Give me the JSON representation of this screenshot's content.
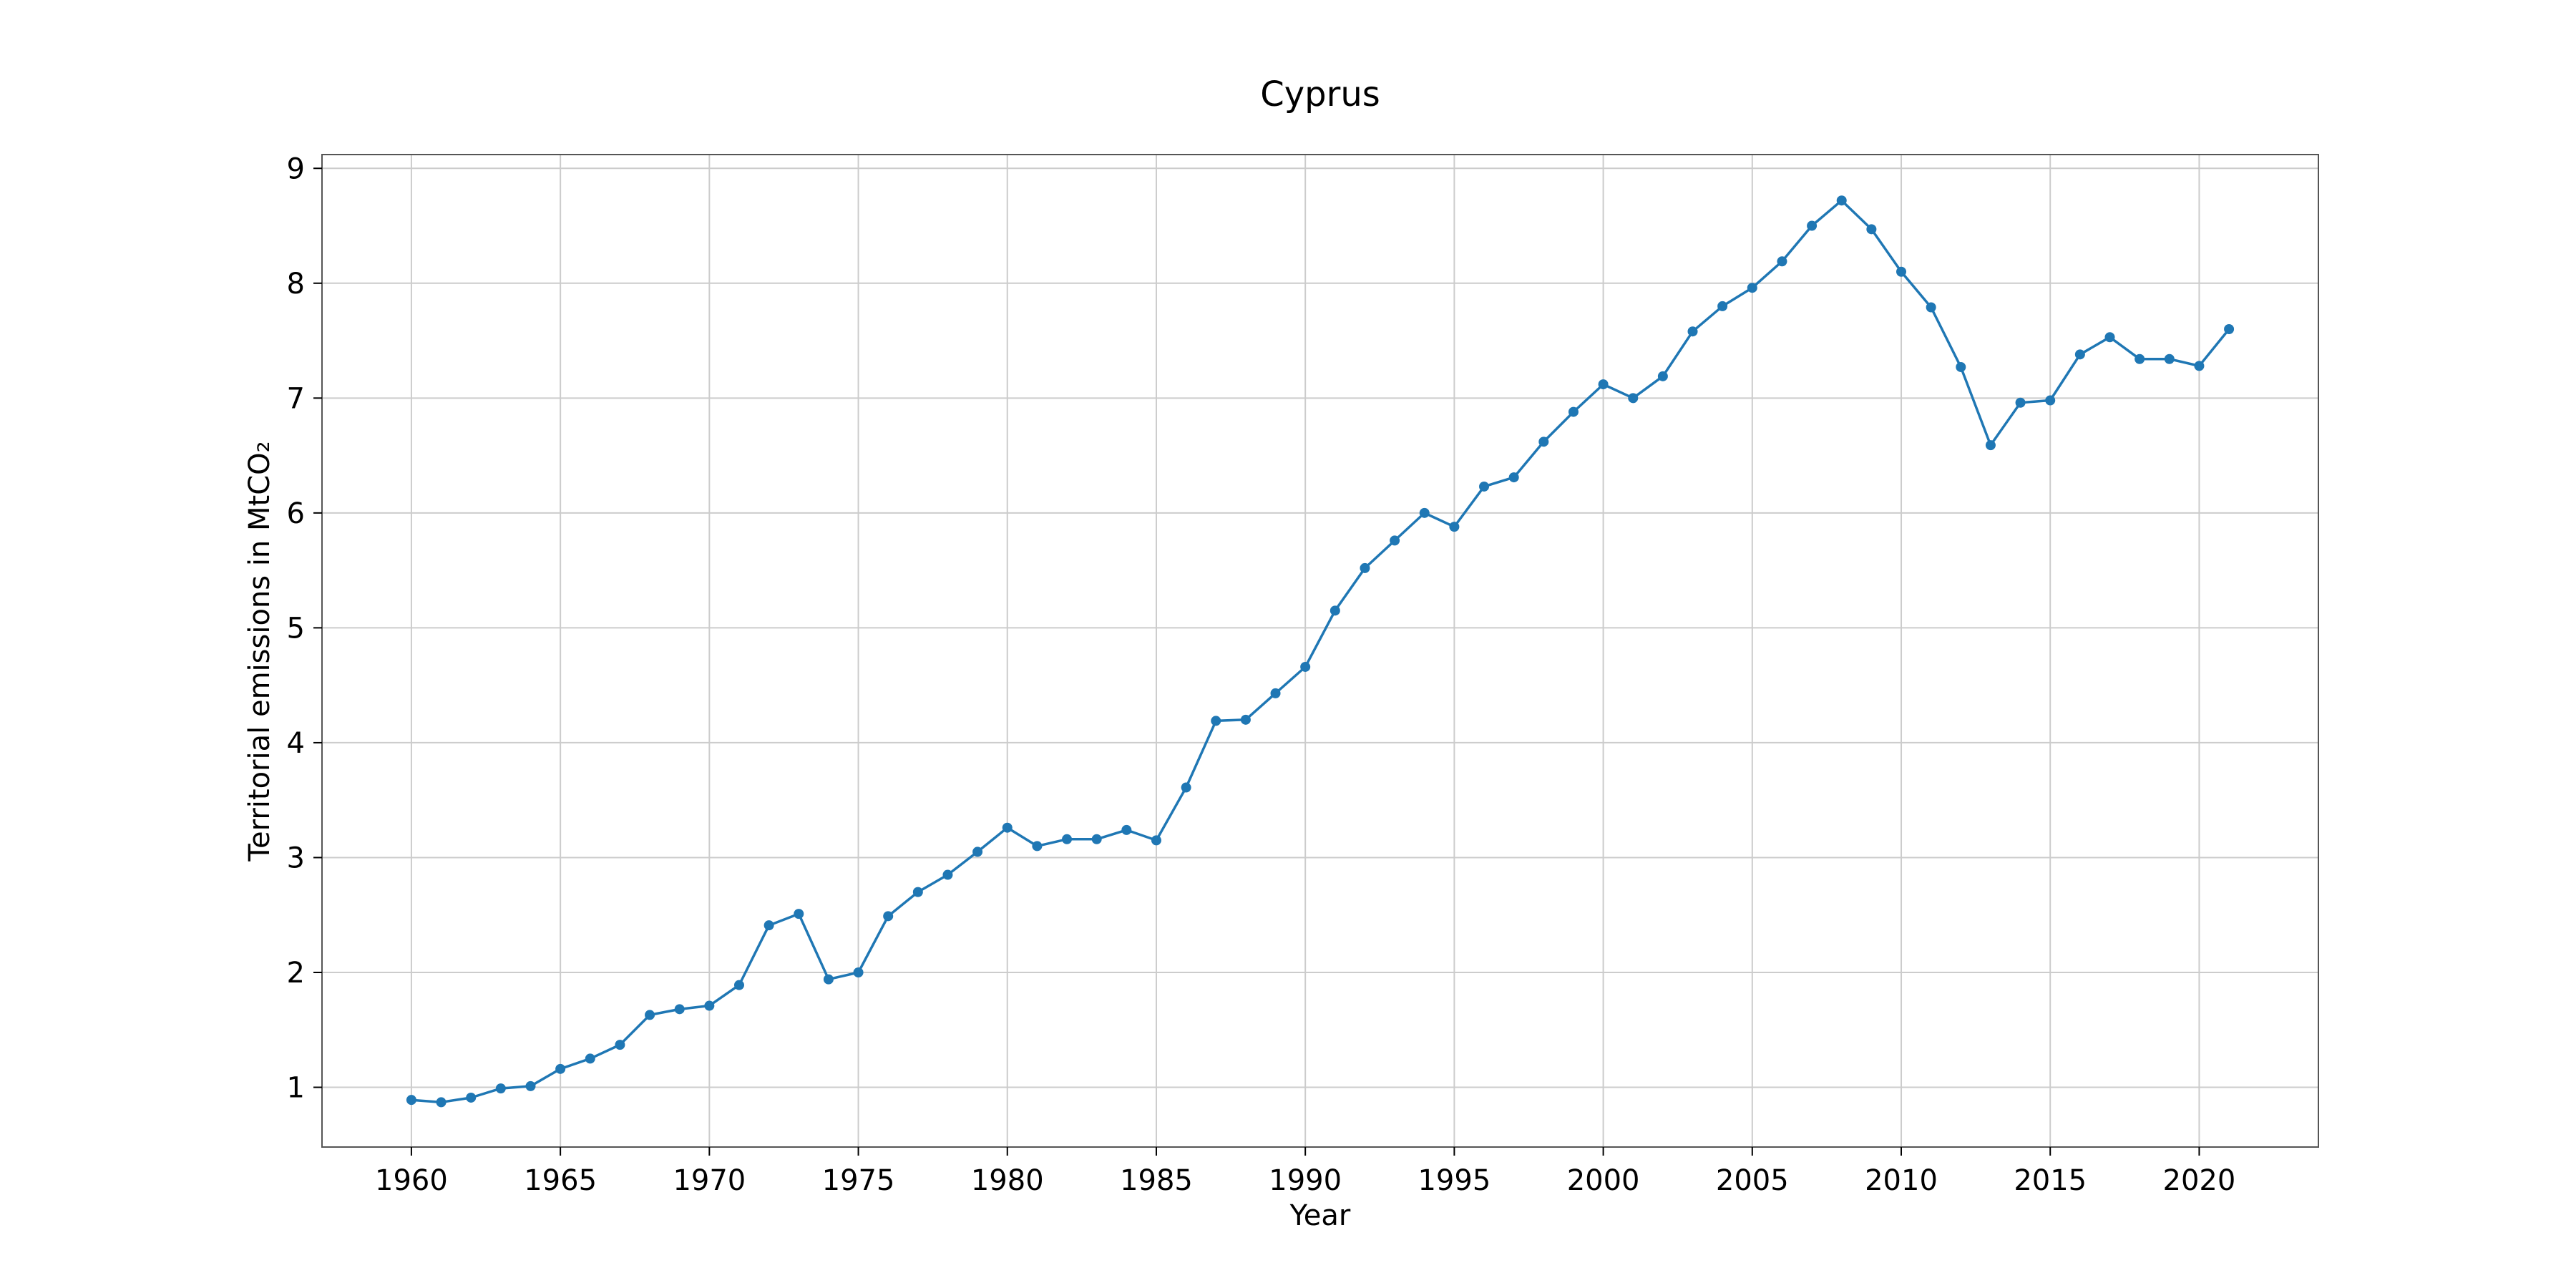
{
  "chart_data": {
    "type": "line",
    "title": "Cyprus",
    "xlabel": "Year",
    "ylabel": "Territorial emissions in MtCO₂",
    "xlim": [
      1957,
      2024
    ],
    "ylim": [
      0.48,
      9.12
    ],
    "xticks": [
      1960,
      1965,
      1970,
      1975,
      1980,
      1985,
      1990,
      1995,
      2000,
      2005,
      2010,
      2015,
      2020
    ],
    "yticks": [
      1,
      2,
      3,
      4,
      5,
      6,
      7,
      8,
      9
    ],
    "grid": true,
    "line_color": "#1f77b4",
    "series": [
      {
        "x": [
          1960,
          1961,
          1962,
          1963,
          1964,
          1965,
          1966,
          1967,
          1968,
          1969,
          1970,
          1971,
          1972,
          1973,
          1974,
          1975,
          1976,
          1977,
          1978,
          1979,
          1980,
          1981,
          1982,
          1983,
          1984,
          1985,
          1986,
          1987,
          1988,
          1989,
          1990,
          1991,
          1992,
          1993,
          1994,
          1995,
          1996,
          1997,
          1998,
          1999,
          2000,
          2001,
          2002,
          2003,
          2004,
          2005,
          2006,
          2007,
          2008,
          2009,
          2010,
          2011,
          2012,
          2013,
          2014,
          2015,
          2016,
          2017,
          2018,
          2019,
          2020,
          2021
        ],
        "values": [
          0.89,
          0.87,
          0.91,
          0.99,
          1.01,
          1.16,
          1.25,
          1.37,
          1.63,
          1.68,
          1.71,
          1.89,
          2.41,
          2.51,
          1.94,
          2.0,
          2.49,
          2.7,
          2.85,
          3.05,
          3.26,
          3.1,
          3.16,
          3.16,
          3.24,
          3.15,
          3.61,
          4.19,
          4.2,
          4.43,
          4.66,
          5.15,
          5.52,
          5.76,
          6.0,
          5.88,
          6.23,
          6.31,
          6.62,
          6.88,
          7.12,
          7.0,
          7.19,
          7.58,
          7.8,
          7.96,
          8.19,
          8.5,
          8.72,
          8.47,
          8.1,
          7.79,
          7.27,
          6.59,
          6.96,
          6.98,
          7.38,
          7.53,
          7.34,
          7.34,
          7.28,
          7.6
        ]
      }
    ]
  }
}
